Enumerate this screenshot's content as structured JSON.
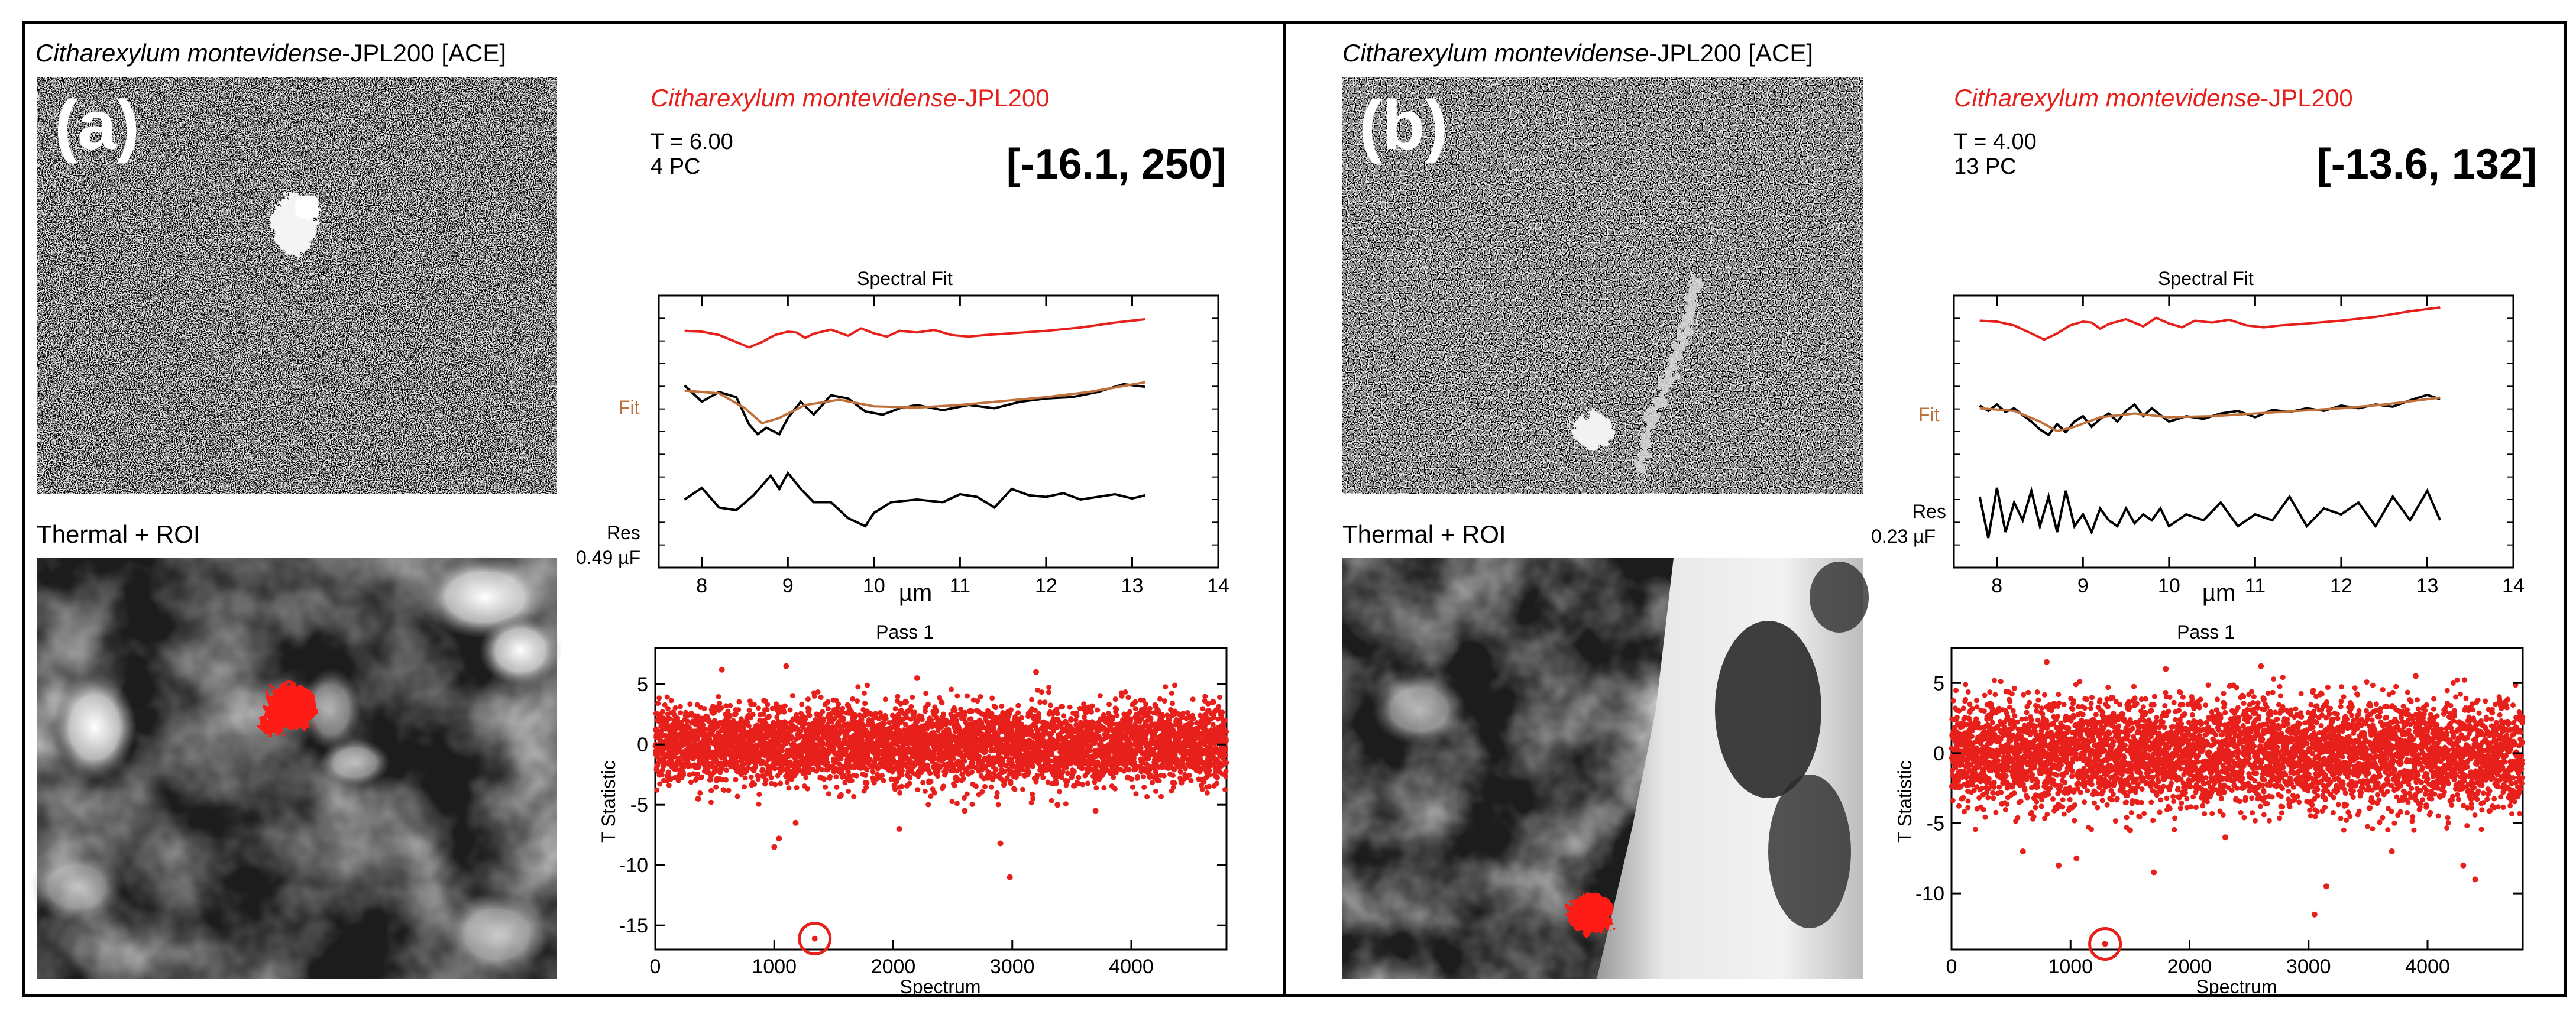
{
  "panels": [
    {
      "id": "a",
      "letter": "(a)",
      "ace_title_italic": "Citharexylum  montevidense",
      "ace_title_rest": "-JPL200  [ACE]",
      "thermal_label": "Thermal + ROI",
      "spec_name": "Citharexylum  montevidense-JPL200",
      "t_value": "T = 6.00",
      "pc_value": "4 PC",
      "bracket": "[-16.1, 250]",
      "spectral_title": "Spectral Fit",
      "fit_label": "Fit",
      "res_label": "Res",
      "res_scale": "0.49 µF",
      "spec_xlabel": "µm",
      "pass_title": "Pass 1",
      "scatter_ylabel": "T Statistic",
      "scatter_xlabel": "Spectrum"
    },
    {
      "id": "b",
      "letter": "(b)",
      "ace_title_italic": "Citharexylum  montevidense",
      "ace_title_rest": "-JPL200  [ACE]",
      "thermal_label": "Thermal + ROI",
      "spec_name": "Citharexylum  montevidense-JPL200",
      "t_value": "T = 4.00",
      "pc_value": "13 PC",
      "bracket": "[-13.6, 132]",
      "spectral_title": "Spectral Fit",
      "fit_label": "Fit",
      "res_label": "Res",
      "res_scale": "0.23 µF",
      "spec_xlabel": "µm",
      "pass_title": "Pass 1",
      "scatter_ylabel": "T Statistic",
      "scatter_xlabel": "Spectrum"
    }
  ],
  "chart_data": [
    {
      "type": "line",
      "panel": "a",
      "title": "Spectral Fit",
      "xlabel": "µm",
      "xlim": [
        7.5,
        14
      ],
      "x_ticks": [
        8,
        9,
        10,
        11,
        12,
        13,
        14
      ],
      "series": [
        {
          "color": "#e8201c",
          "x": [
            7.8,
            8.0,
            8.2,
            8.4,
            8.55,
            8.7,
            8.85,
            9.0,
            9.1,
            9.2,
            9.3,
            9.5,
            9.7,
            9.85,
            10.0,
            10.15,
            10.3,
            10.5,
            10.7,
            10.9,
            11.1,
            11.3,
            11.6,
            12.0,
            12.4,
            12.8,
            13.15
          ],
          "y": [
            0.72,
            0.7,
            0.62,
            0.45,
            0.32,
            0.45,
            0.62,
            0.7,
            0.68,
            0.55,
            0.65,
            0.75,
            0.6,
            0.78,
            0.66,
            0.58,
            0.72,
            0.68,
            0.74,
            0.62,
            0.58,
            0.62,
            0.66,
            0.72,
            0.8,
            0.92,
            1.0
          ]
        },
        {
          "color": "#000000",
          "x": [
            7.8,
            8.0,
            8.2,
            8.4,
            8.55,
            8.65,
            8.75,
            8.9,
            9.0,
            9.15,
            9.3,
            9.5,
            9.7,
            9.9,
            10.1,
            10.3,
            10.5,
            10.8,
            11.1,
            11.4,
            11.7,
            12.0,
            12.3,
            12.6,
            12.9,
            13.15
          ],
          "y": [
            0.8,
            0.55,
            0.7,
            0.62,
            0.2,
            0.05,
            0.15,
            0.05,
            0.3,
            0.55,
            0.35,
            0.65,
            0.6,
            0.4,
            0.35,
            0.45,
            0.5,
            0.42,
            0.5,
            0.45,
            0.55,
            0.6,
            0.62,
            0.7,
            0.82,
            0.78
          ]
        },
        {
          "color": "#c0703a",
          "x": [
            7.8,
            8.2,
            8.5,
            8.7,
            8.9,
            9.2,
            9.6,
            10.0,
            10.5,
            11.0,
            11.5,
            12.0,
            12.5,
            13.15
          ],
          "y": [
            0.72,
            0.68,
            0.45,
            0.22,
            0.3,
            0.5,
            0.58,
            0.48,
            0.46,
            0.5,
            0.56,
            0.62,
            0.7,
            0.85
          ]
        },
        {
          "color": "#000000",
          "x": [
            7.8,
            8.0,
            8.2,
            8.4,
            8.6,
            8.8,
            8.9,
            9.0,
            9.15,
            9.3,
            9.5,
            9.7,
            9.9,
            10.0,
            10.2,
            10.5,
            10.8,
            11.0,
            11.2,
            11.4,
            11.6,
            11.8,
            12.0,
            12.2,
            12.4,
            12.6,
            12.8,
            13.0,
            13.15
          ],
          "y": [
            0.5,
            0.72,
            0.35,
            0.3,
            0.58,
            0.95,
            0.7,
            1.0,
            0.7,
            0.45,
            0.45,
            0.15,
            0.0,
            0.25,
            0.45,
            0.5,
            0.45,
            0.6,
            0.55,
            0.35,
            0.7,
            0.58,
            0.55,
            0.62,
            0.5,
            0.55,
            0.6,
            0.52,
            0.58
          ]
        }
      ]
    },
    {
      "type": "scatter",
      "panel": "a",
      "title": "Pass 1",
      "xlabel": "Spectrum",
      "ylabel": "T Statistic",
      "xlim": [
        0,
        4800
      ],
      "ylim": [
        -17,
        8
      ],
      "x_ticks": [
        0,
        1000,
        2000,
        3000,
        4000
      ],
      "y_ticks": [
        5,
        0,
        -5,
        -10,
        -15
      ],
      "n_points": 4800,
      "band": [
        -2.5,
        2.5
      ],
      "outliers": [
        [
          1000,
          -8.5
        ],
        [
          1040,
          -7.8
        ],
        [
          1340,
          -16.1
        ],
        [
          1180,
          -6.5
        ],
        [
          1560,
          -4.2
        ],
        [
          2050,
          -7
        ],
        [
          2980,
          -11
        ],
        [
          2900,
          -8.2
        ],
        [
          3380,
          -5
        ],
        [
          3700,
          -5.5
        ],
        [
          360,
          -4.5
        ],
        [
          2600,
          -5.5
        ],
        [
          560,
          6.2
        ],
        [
          1100,
          6.5
        ],
        [
          2200,
          5.5
        ],
        [
          3200,
          6
        ]
      ],
      "highlight": [
        1340,
        -16.1
      ]
    },
    {
      "type": "line",
      "panel": "b",
      "title": "Spectral Fit",
      "xlabel": "µm",
      "xlim": [
        7.5,
        14
      ],
      "x_ticks": [
        8,
        9,
        10,
        11,
        12,
        13,
        14
      ],
      "series": [
        {
          "color": "#e8201c",
          "x": [
            7.8,
            8.0,
            8.2,
            8.4,
            8.55,
            8.7,
            8.85,
            9.0,
            9.1,
            9.2,
            9.3,
            9.5,
            9.7,
            9.85,
            10.0,
            10.15,
            10.3,
            10.5,
            10.7,
            10.9,
            11.1,
            11.3,
            11.6,
            12.0,
            12.4,
            12.8,
            13.15
          ],
          "y": [
            0.72,
            0.7,
            0.62,
            0.45,
            0.32,
            0.45,
            0.62,
            0.7,
            0.68,
            0.55,
            0.65,
            0.75,
            0.6,
            0.78,
            0.66,
            0.58,
            0.72,
            0.68,
            0.74,
            0.62,
            0.58,
            0.62,
            0.66,
            0.72,
            0.8,
            0.92,
            1.0
          ]
        },
        {
          "color": "#000000",
          "x": [
            7.8,
            7.9,
            8.0,
            8.1,
            8.2,
            8.3,
            8.4,
            8.5,
            8.6,
            8.7,
            8.8,
            8.9,
            9.0,
            9.1,
            9.2,
            9.3,
            9.4,
            9.5,
            9.6,
            9.7,
            9.8,
            9.9,
            10.0,
            10.2,
            10.4,
            10.6,
            10.8,
            11.0,
            11.2,
            11.4,
            11.6,
            11.8,
            12.0,
            12.2,
            12.4,
            12.6,
            12.8,
            13.0,
            13.15
          ],
          "y": [
            0.6,
            0.5,
            0.62,
            0.48,
            0.55,
            0.42,
            0.3,
            0.15,
            0.05,
            0.25,
            0.1,
            0.3,
            0.4,
            0.2,
            0.35,
            0.45,
            0.3,
            0.5,
            0.62,
            0.4,
            0.55,
            0.42,
            0.3,
            0.4,
            0.35,
            0.45,
            0.5,
            0.38,
            0.52,
            0.48,
            0.55,
            0.5,
            0.6,
            0.55,
            0.62,
            0.58,
            0.7,
            0.8,
            0.72
          ]
        },
        {
          "color": "#c0703a",
          "x": [
            7.8,
            8.2,
            8.5,
            8.7,
            8.9,
            9.2,
            9.6,
            10.0,
            10.5,
            11.0,
            11.5,
            12.0,
            12.5,
            13.15
          ],
          "y": [
            0.55,
            0.5,
            0.3,
            0.12,
            0.2,
            0.38,
            0.45,
            0.38,
            0.4,
            0.45,
            0.5,
            0.55,
            0.62,
            0.75
          ]
        },
        {
          "color": "#000000",
          "x": [
            7.8,
            7.9,
            8.0,
            8.1,
            8.2,
            8.3,
            8.4,
            8.5,
            8.6,
            8.7,
            8.8,
            8.9,
            9.0,
            9.1,
            9.2,
            9.3,
            9.4,
            9.5,
            9.6,
            9.7,
            9.8,
            9.9,
            10.0,
            10.2,
            10.4,
            10.6,
            10.8,
            11.0,
            11.2,
            11.4,
            11.6,
            11.8,
            12.0,
            12.2,
            12.4,
            12.6,
            12.8,
            13.0,
            13.15
          ],
          "y": [
            0.8,
            0.1,
            0.95,
            0.2,
            0.7,
            0.4,
            0.9,
            0.3,
            0.8,
            0.2,
            0.9,
            0.3,
            0.5,
            0.2,
            0.6,
            0.4,
            0.3,
            0.6,
            0.35,
            0.5,
            0.4,
            0.6,
            0.3,
            0.5,
            0.4,
            0.7,
            0.3,
            0.5,
            0.4,
            0.8,
            0.3,
            0.6,
            0.5,
            0.7,
            0.3,
            0.8,
            0.4,
            0.9,
            0.4
          ]
        }
      ]
    },
    {
      "type": "scatter",
      "panel": "b",
      "title": "Pass 1",
      "xlabel": "Spectrum",
      "ylabel": "T Statistic",
      "xlim": [
        0,
        4800
      ],
      "ylim": [
        -14,
        7.5
      ],
      "x_ticks": [
        0,
        1000,
        2000,
        3000,
        4000
      ],
      "y_ticks": [
        5,
        0,
        -5,
        -10
      ],
      "n_points": 4800,
      "band": [
        -3,
        3
      ],
      "outliers": [
        [
          1290,
          -13.6
        ],
        [
          900,
          -8
        ],
        [
          1050,
          -7.5
        ],
        [
          1700,
          -8.5
        ],
        [
          2300,
          -6
        ],
        [
          3050,
          -11.5
        ],
        [
          3150,
          -9.5
        ],
        [
          3700,
          -7
        ],
        [
          4400,
          -9
        ],
        [
          4300,
          -8
        ],
        [
          600,
          -7
        ],
        [
          1500,
          -5.5
        ],
        [
          800,
          6.5
        ],
        [
          1800,
          6
        ],
        [
          2600,
          6.2
        ],
        [
          3900,
          5.5
        ]
      ],
      "highlight": [
        1290,
        -13.6
      ]
    }
  ]
}
